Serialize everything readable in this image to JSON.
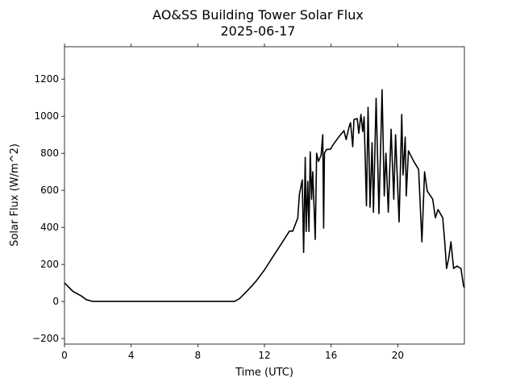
{
  "chart_data": {
    "type": "line",
    "title": "AO&SS Building Tower Solar Flux",
    "subtitle": "2025-06-17",
    "xlabel": "Time (UTC)",
    "ylabel": "Solar Flux (W/m^2)",
    "xlim": [
      0,
      24
    ],
    "ylim": [
      -230,
      1375
    ],
    "xticks": [
      0,
      4,
      8,
      12,
      16,
      20
    ],
    "xtick_labels": [
      "0",
      "4",
      "8",
      "12",
      "16",
      "20"
    ],
    "yticks": [
      -200,
      0,
      200,
      400,
      600,
      800,
      1000,
      1200
    ],
    "ytick_labels": [
      "−200",
      "0",
      "200",
      "400",
      "600",
      "800",
      "1000",
      "1200"
    ],
    "grid": false,
    "line_color": "#000000",
    "series": [
      {
        "name": "Solar Flux",
        "x": [
          0,
          0.5,
          1.0,
          1.3,
          1.7,
          10.2,
          10.5,
          11,
          11.5,
          12,
          12.5,
          13,
          13.5,
          13.7,
          14.0,
          14.1,
          14.27,
          14.35,
          14.45,
          14.5,
          14.6,
          14.67,
          14.75,
          14.83,
          14.9,
          15.05,
          15.13,
          15.24,
          15.4,
          15.5,
          15.55,
          15.6,
          15.72,
          15.97,
          16.1,
          16.45,
          16.77,
          16.9,
          17.08,
          17.17,
          17.3,
          17.37,
          17.57,
          17.66,
          17.79,
          17.9,
          17.98,
          18.12,
          18.22,
          18.34,
          18.46,
          18.54,
          18.7,
          18.87,
          19.06,
          19.19,
          19.29,
          19.43,
          19.6,
          19.76,
          19.87,
          20.08,
          20.24,
          20.32,
          20.45,
          20.51,
          20.64,
          20.96,
          21.25,
          21.45,
          21.61,
          21.77,
          22.1,
          22.26,
          22.42,
          22.7,
          22.82,
          22.93,
          23.06,
          23.19,
          23.35,
          23.55,
          23.79,
          23.95,
          24.0
        ],
        "y": [
          100,
          55,
          30,
          10,
          0,
          0,
          15,
          60,
          110,
          170,
          240,
          310,
          380,
          380,
          450,
          580,
          656,
          265,
          778,
          378,
          648,
          378,
          808,
          552,
          700,
          335,
          800,
          756,
          790,
          900,
          396,
          800,
          820,
          822,
          843,
          887,
          922,
          874,
          943,
          965,
          835,
          982,
          987,
          908,
          1009,
          917,
          996,
          517,
          1048,
          509,
          857,
          482,
          1096,
          474,
          1143,
          570,
          800,
          482,
          930,
          552,
          900,
          430,
          1009,
          683,
          887,
          570,
          813,
          756,
          713,
          322,
          700,
          596,
          552,
          452,
          496,
          452,
          322,
          178,
          235,
          322,
          178,
          191,
          178,
          83,
          75
        ]
      }
    ]
  }
}
